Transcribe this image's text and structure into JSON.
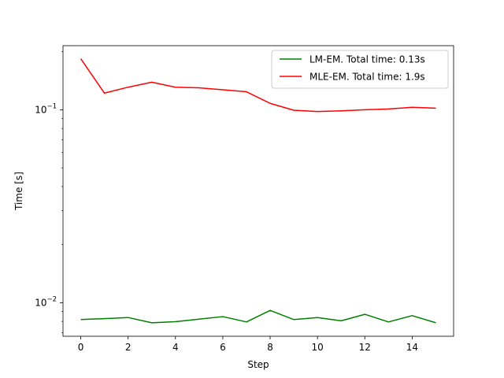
{
  "chart_data": {
    "type": "line",
    "title": "",
    "xlabel": "Step",
    "ylabel": "Time [s]",
    "x": [
      0,
      1,
      2,
      3,
      4,
      5,
      6,
      7,
      8,
      9,
      10,
      11,
      12,
      13,
      14,
      15
    ],
    "xlim": [
      -0.75,
      15.75
    ],
    "xticks": [
      0,
      2,
      4,
      6,
      8,
      10,
      12,
      14
    ],
    "yscale": "log",
    "ylim": [
      0.0067,
      0.215
    ],
    "yticks": [
      {
        "value": 0.01,
        "base": "10",
        "exp": "−2"
      },
      {
        "value": 0.1,
        "base": "10",
        "exp": "−1"
      }
    ],
    "grid": false,
    "legend": "top-right",
    "series": [
      {
        "name": "LM-EM. Total time: 0.13s",
        "color": "#008000",
        "values": [
          0.00818,
          0.00827,
          0.00838,
          0.00787,
          0.00797,
          0.00822,
          0.00847,
          0.00795,
          0.00912,
          0.00818,
          0.00838,
          0.00806,
          0.00871,
          0.00795,
          0.00857,
          0.00787
        ]
      },
      {
        "name": "MLE-EM. Total time: 1.9s",
        "color": "#ff0000",
        "values": [
          0.184,
          0.122,
          0.131,
          0.139,
          0.131,
          0.13,
          0.127,
          0.124,
          0.108,
          0.0995,
          0.098,
          0.0988,
          0.1,
          0.101,
          0.103,
          0.102
        ]
      }
    ]
  }
}
